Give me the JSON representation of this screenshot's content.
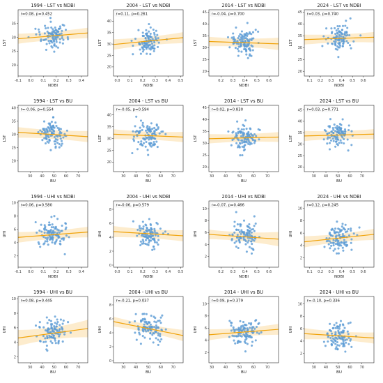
{
  "chart_data": [
    {
      "type": "scatter",
      "title": "1994 - LST vs NDBI",
      "xlabel": "NDBI",
      "ylabel": "LST",
      "stat": "r=0.08, p=0.452",
      "xlim": [
        -0.1,
        0.45
      ],
      "ylim": [
        16,
        40
      ],
      "xticks": [
        "-0.1",
        "0.0",
        "0.1",
        "0.2",
        "0.3",
        "0.4"
      ],
      "yticks": [
        "20",
        "25",
        "30",
        "35"
      ],
      "xtickvals": [
        -0.1,
        0.0,
        0.1,
        0.2,
        0.3,
        0.4
      ],
      "ytickvals": [
        20,
        25,
        30,
        35
      ],
      "fit": {
        "x": [
          -0.1,
          0.45
        ],
        "y": [
          29.5,
          31.6
        ]
      },
      "band": [
        1.8,
        1.2,
        1.9
      ],
      "seed": 11
    },
    {
      "type": "scatter",
      "title": "2004 - LST vs NDBI",
      "xlabel": "NDBI",
      "ylabel": "LST",
      "stat": "r=0.11, p=0.261",
      "xlim": [
        -0.03,
        0.52
      ],
      "ylim": [
        16,
        45
      ],
      "xticks": [
        "0.0",
        "0.1",
        "0.2",
        "0.3",
        "0.4",
        "0.5"
      ],
      "yticks": [
        "20",
        "25",
        "30",
        "35",
        "40"
      ],
      "xtickvals": [
        0.0,
        0.1,
        0.2,
        0.3,
        0.4,
        0.5
      ],
      "ytickvals": [
        20,
        25,
        30,
        35,
        40
      ],
      "fit": {
        "x": [
          -0.03,
          0.52
        ],
        "y": [
          29.8,
          32.8
        ]
      },
      "band": [
        2.3,
        1.3,
        2.4
      ],
      "seed": 23
    },
    {
      "type": "scatter",
      "title": "2014 - LST vs NDBI",
      "xlabel": "NDBI",
      "ylabel": "LST",
      "stat": "r=-0.04, p=0.700",
      "xlim": [
        0.1,
        0.68
      ],
      "ylim": [
        18,
        46
      ],
      "xticks": [
        "0.2",
        "0.3",
        "0.4",
        "0.5",
        "0.6"
      ],
      "yticks": [
        "20",
        "25",
        "30",
        "35",
        "40",
        "45"
      ],
      "xtickvals": [
        0.2,
        0.3,
        0.4,
        0.5,
        0.6
      ],
      "ytickvals": [
        20,
        25,
        30,
        35,
        40,
        45
      ],
      "fit": {
        "x": [
          0.1,
          0.68
        ],
        "y": [
          32.6,
          31.6
        ]
      },
      "band": [
        2.0,
        1.2,
        2.6
      ],
      "seed": 37
    },
    {
      "type": "scatter",
      "title": "2024 - LST vs NDBI",
      "xlabel": "NDBI",
      "ylabel": "LST",
      "stat": "r=0.03, p=0.740",
      "xlim": [
        0.05,
        0.7
      ],
      "ylim": [
        18,
        46
      ],
      "xticks": [
        "0.1",
        "0.2",
        "0.3",
        "0.4",
        "0.5",
        "0.6"
      ],
      "yticks": [
        "20",
        "25",
        "30",
        "35",
        "40",
        "45"
      ],
      "xtickvals": [
        0.1,
        0.2,
        0.3,
        0.4,
        0.5,
        0.6
      ],
      "ytickvals": [
        20,
        25,
        30,
        35,
        40,
        45
      ],
      "fit": {
        "x": [
          0.05,
          0.7
        ],
        "y": [
          33.4,
          34.4
        ]
      },
      "band": [
        2.1,
        1.3,
        2.2
      ],
      "seed": 41
    },
    {
      "type": "scatter",
      "title": "1994 - LST vs BU",
      "xlabel": "BU",
      "ylabel": "LST",
      "stat": "r=-0.06, p=0.554",
      "xlim": [
        20,
        78
      ],
      "ylim": [
        16,
        41
      ],
      "xticks": [
        "30",
        "40",
        "50",
        "60",
        "70"
      ],
      "yticks": [
        "20",
        "25",
        "30",
        "35",
        "40"
      ],
      "xtickvals": [
        30,
        40,
        50,
        60,
        70
      ],
      "ytickvals": [
        20,
        25,
        30,
        35,
        40
      ],
      "fit": {
        "x": [
          20,
          78
        ],
        "y": [
          30.8,
          29.2
        ]
      },
      "band": [
        2.0,
        1.2,
        2.1
      ],
      "seed": 53
    },
    {
      "type": "scatter",
      "title": "2004 - LST vs BU",
      "xlabel": "BU",
      "ylabel": "LST",
      "stat": "r=-0.05, p=0.594",
      "xlim": [
        22,
        78
      ],
      "ylim": [
        16,
        44
      ],
      "xticks": [
        "30",
        "40",
        "50",
        "60",
        "70"
      ],
      "yticks": [
        "20",
        "25",
        "30",
        "35",
        "40"
      ],
      "xtickvals": [
        30,
        40,
        50,
        60,
        70
      ],
      "ytickvals": [
        20,
        25,
        30,
        35,
        40
      ],
      "fit": {
        "x": [
          22,
          78
        ],
        "y": [
          31.8,
          30.6
        ]
      },
      "band": [
        2.1,
        1.2,
        2.2
      ],
      "seed": 67
    },
    {
      "type": "scatter",
      "title": "2014 - LST vs BU",
      "xlabel": "BU",
      "ylabel": "LST",
      "stat": "r=0.02, p=0.830",
      "xlim": [
        28,
        78
      ],
      "ylim": [
        18,
        46
      ],
      "xticks": [
        "30",
        "40",
        "50",
        "60",
        "70"
      ],
      "yticks": [
        "20",
        "25",
        "30",
        "35",
        "40",
        "45"
      ],
      "xtickvals": [
        30,
        40,
        50,
        60,
        70
      ],
      "ytickvals": [
        20,
        25,
        30,
        35,
        40,
        45
      ],
      "fit": {
        "x": [
          28,
          78
        ],
        "y": [
          31.9,
          32.6
        ]
      },
      "band": [
        2.0,
        1.2,
        2.1
      ],
      "seed": 79
    },
    {
      "type": "scatter",
      "title": "2024 - LST vs BU",
      "xlabel": "BU",
      "ylabel": "LST",
      "stat": "r=0.03, p=0.771",
      "xlim": [
        22,
        80
      ],
      "ylim": [
        18,
        47
      ],
      "xticks": [
        "30",
        "40",
        "50",
        "60",
        "70"
      ],
      "yticks": [
        "20",
        "25",
        "30",
        "35",
        "40",
        "45"
      ],
      "xtickvals": [
        30,
        40,
        50,
        60,
        70
      ],
      "ytickvals": [
        20,
        25,
        30,
        35,
        40,
        45
      ],
      "fit": {
        "x": [
          22,
          80
        ],
        "y": [
          33.6,
          34.4
        ]
      },
      "band": [
        2.2,
        1.3,
        2.2
      ],
      "seed": 83
    },
    {
      "type": "scatter",
      "title": "1994 - UHI vs NDBI",
      "xlabel": "NDBI",
      "ylabel": "UHI",
      "stat": "r=0.06, p=0.580",
      "xlim": [
        -0.1,
        0.45
      ],
      "ylim": [
        0.3,
        10.3
      ],
      "xticks": [
        "-0.1",
        "0.0",
        "0.1",
        "0.2",
        "0.3",
        "0.4"
      ],
      "yticks": [
        "2",
        "4",
        "6",
        "8",
        "10"
      ],
      "xtickvals": [
        -0.1,
        0.0,
        0.1,
        0.2,
        0.3,
        0.4
      ],
      "ytickvals": [
        2,
        4,
        6,
        8,
        10
      ],
      "fit": {
        "x": [
          -0.1,
          0.45
        ],
        "y": [
          4.8,
          5.6
        ]
      },
      "band": [
        0.8,
        0.45,
        0.8
      ],
      "seed": 97
    },
    {
      "type": "scatter",
      "title": "2004 - UHI vs NDBI",
      "xlabel": "NDBI",
      "ylabel": "UHI",
      "stat": "r=-0.06, p=0.579",
      "xlim": [
        -0.03,
        0.52
      ],
      "ylim": [
        -0.3,
        9.2
      ],
      "xticks": [
        "0.0",
        "0.1",
        "0.2",
        "0.3",
        "0.4",
        "0.5"
      ],
      "yticks": [
        "0",
        "2",
        "4",
        "6",
        "8"
      ],
      "xtickvals": [
        0.0,
        0.1,
        0.2,
        0.3,
        0.4,
        0.5
      ],
      "ytickvals": [
        0,
        2,
        4,
        6,
        8
      ],
      "fit": {
        "x": [
          -0.03,
          0.52
        ],
        "y": [
          4.8,
          4.2
        ]
      },
      "band": [
        0.8,
        0.45,
        0.8
      ],
      "seed": 101
    },
    {
      "type": "scatter",
      "title": "2014 - UHI vs NDBI",
      "xlabel": "NDBI",
      "ylabel": "UHI",
      "stat": "r=-0.07, p=0.466",
      "xlim": [
        0.1,
        0.68
      ],
      "ylim": [
        0.2,
        11.3
      ],
      "xticks": [
        "0.2",
        "0.3",
        "0.4",
        "0.5",
        "0.6"
      ],
      "yticks": [
        "2",
        "4",
        "6",
        "8",
        "10"
      ],
      "xtickvals": [
        0.2,
        0.3,
        0.4,
        0.5,
        0.6
      ],
      "ytickvals": [
        2,
        4,
        6,
        8,
        10
      ],
      "fit": {
        "x": [
          0.1,
          0.68
        ],
        "y": [
          5.7,
          4.9
        ]
      },
      "band": [
        0.8,
        0.5,
        1.2
      ],
      "seed": 113
    },
    {
      "type": "scatter",
      "title": "2024 - UHI vs NDBI",
      "xlabel": "NDBI",
      "ylabel": "UHI",
      "stat": "r=0.12, p=0.245",
      "xlim": [
        0.05,
        0.7
      ],
      "ylim": [
        0.5,
        11.2
      ],
      "xticks": [
        "0.1",
        "0.2",
        "0.3",
        "0.4",
        "0.5",
        "0.6"
      ],
      "yticks": [
        "2",
        "4",
        "6",
        "8",
        "10"
      ],
      "xtickvals": [
        0.1,
        0.2,
        0.3,
        0.4,
        0.5,
        0.6
      ],
      "ytickvals": [
        2,
        4,
        6,
        8,
        10
      ],
      "fit": {
        "x": [
          0.05,
          0.7
        ],
        "y": [
          4.6,
          5.8
        ]
      },
      "band": [
        0.9,
        0.45,
        0.9
      ],
      "seed": 127
    },
    {
      "type": "scatter",
      "title": "1994 - UHI vs BU",
      "xlabel": "BU",
      "ylabel": "UHI",
      "stat": "r=0.08, p=0.445",
      "xlim": [
        20,
        78
      ],
      "ylim": [
        1.2,
        10.3
      ],
      "xticks": [
        "30",
        "40",
        "50",
        "60",
        "70"
      ],
      "yticks": [
        "2",
        "4",
        "6",
        "8",
        "10"
      ],
      "xtickvals": [
        30,
        40,
        50,
        60,
        70
      ],
      "ytickvals": [
        2,
        4,
        6,
        8,
        10
      ],
      "fit": {
        "x": [
          20,
          78
        ],
        "y": [
          4.6,
          5.9
        ]
      },
      "band": [
        1.1,
        0.5,
        1.2
      ],
      "seed": 131
    },
    {
      "type": "scatter",
      "title": "2004 - UHI vs BU",
      "xlabel": "BU",
      "ylabel": "UHI",
      "stat": "r=-0.21, p=0.037",
      "xlim": [
        22,
        78
      ],
      "ylim": [
        -0.3,
        9.2
      ],
      "xticks": [
        "30",
        "40",
        "50",
        "60",
        "70"
      ],
      "yticks": [
        "0",
        "2",
        "4",
        "6",
        "8"
      ],
      "xtickvals": [
        30,
        40,
        50,
        60,
        70
      ],
      "ytickvals": [
        0,
        2,
        4,
        6,
        8
      ],
      "fit": {
        "x": [
          22,
          78
        ],
        "y": [
          5.6,
          3.6
        ]
      },
      "band": [
        0.7,
        0.4,
        0.8
      ],
      "seed": 149
    },
    {
      "type": "scatter",
      "title": "2014 - UHI vs BU",
      "xlabel": "BU",
      "ylabel": "UHI",
      "stat": "r=0.09, p=0.379",
      "xlim": [
        28,
        78
      ],
      "ylim": [
        0.3,
        11.2
      ],
      "xticks": [
        "30",
        "40",
        "50",
        "60",
        "70"
      ],
      "yticks": [
        "2",
        "4",
        "6",
        "8",
        "10"
      ],
      "xtickvals": [
        30,
        40,
        50,
        60,
        70
      ],
      "ytickvals": [
        2,
        4,
        6,
        8,
        10
      ],
      "fit": {
        "x": [
          28,
          78
        ],
        "y": [
          4.9,
          5.8
        ]
      },
      "band": [
        0.9,
        0.45,
        0.9
      ],
      "seed": 151
    },
    {
      "type": "scatter",
      "title": "2024 - UHI vs BU",
      "xlabel": "BU",
      "ylabel": "UHI",
      "stat": "r=-0.10, p=0.336",
      "xlim": [
        22,
        80
      ],
      "ylim": [
        0.5,
        11.2
      ],
      "xticks": [
        "30",
        "40",
        "50",
        "60",
        "70"
      ],
      "yticks": [
        "2",
        "4",
        "6",
        "8",
        "10"
      ],
      "xtickvals": [
        30,
        40,
        50,
        60,
        70
      ],
      "ytickvals": [
        2,
        4,
        6,
        8,
        10
      ],
      "fit": {
        "x": [
          22,
          80
        ],
        "y": [
          5.2,
          4.5
        ]
      },
      "band": [
        0.9,
        0.45,
        0.9
      ],
      "seed": 167
    }
  ],
  "colors": {
    "points": "#5b9bd5",
    "fit_line": "#f0a30a",
    "band": "#fde9c4",
    "axes": "#222222"
  }
}
